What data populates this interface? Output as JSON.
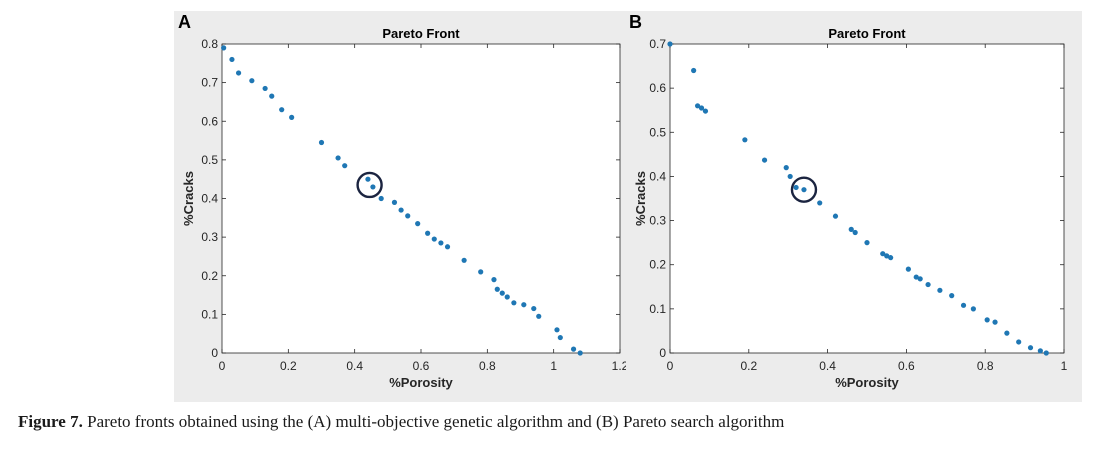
{
  "caption": {
    "label": "Figure 7.",
    "text": " Pareto fronts obtained using the (A) multi-objective genetic algorithm and (B) Pareto search algorithm"
  },
  "colors": {
    "points": "#1f77b4",
    "highlight": "#1b2440",
    "panel_background": "#ececec"
  },
  "chart_data": [
    {
      "type": "scatter",
      "panel_label": "A",
      "title": "Pareto Front",
      "xlabel": "%Porosity",
      "ylabel": "%Cracks",
      "xlim": [
        0,
        1.2
      ],
      "ylim": [
        0,
        0.8
      ],
      "xticks": [
        0,
        0.2,
        0.4,
        0.6,
        0.8,
        1,
        1.2
      ],
      "xtick_labels": [
        "0",
        "0.2",
        "0.4",
        "0.6",
        "0.8",
        "1",
        "1.2"
      ],
      "yticks": [
        0,
        0.1,
        0.2,
        0.3,
        0.4,
        0.5,
        0.6,
        0.7,
        0.8
      ],
      "ytick_labels": [
        "0",
        "0.1",
        "0.2",
        "0.3",
        "0.4",
        "0.5",
        "0.6",
        "0.7",
        "0.8"
      ],
      "grid": false,
      "highlighted_point": [
        0.445,
        0.435
      ],
      "x": [
        0.005,
        0.03,
        0.05,
        0.09,
        0.13,
        0.15,
        0.18,
        0.21,
        0.3,
        0.35,
        0.37,
        0.44,
        0.455,
        0.48,
        0.52,
        0.54,
        0.56,
        0.59,
        0.62,
        0.64,
        0.66,
        0.68,
        0.73,
        0.78,
        0.82,
        0.83,
        0.845,
        0.86,
        0.88,
        0.91,
        0.94,
        0.955,
        1.01,
        1.02,
        1.06,
        1.08
      ],
      "y": [
        0.79,
        0.76,
        0.725,
        0.705,
        0.685,
        0.665,
        0.63,
        0.61,
        0.545,
        0.505,
        0.485,
        0.45,
        0.43,
        0.4,
        0.39,
        0.37,
        0.355,
        0.335,
        0.31,
        0.295,
        0.285,
        0.275,
        0.24,
        0.21,
        0.19,
        0.165,
        0.155,
        0.145,
        0.13,
        0.125,
        0.115,
        0.095,
        0.06,
        0.04,
        0.01,
        0.0
      ]
    },
    {
      "type": "scatter",
      "panel_label": "B",
      "title": "Pareto Front",
      "xlabel": "%Porosity",
      "ylabel": "%Cracks",
      "xlim": [
        0,
        1
      ],
      "ylim": [
        0,
        0.7
      ],
      "xticks": [
        0,
        0.2,
        0.4,
        0.6,
        0.8,
        1
      ],
      "xtick_labels": [
        "0",
        "0.2",
        "0.4",
        "0.6",
        "0.8",
        "1"
      ],
      "yticks": [
        0,
        0.1,
        0.2,
        0.3,
        0.4,
        0.5,
        0.6,
        0.7
      ],
      "ytick_labels": [
        "0",
        "0.1",
        "0.2",
        "0.3",
        "0.4",
        "0.5",
        "0.6",
        "0.7"
      ],
      "grid": false,
      "highlighted_point": [
        0.34,
        0.37
      ],
      "x": [
        0.0,
        0.06,
        0.07,
        0.08,
        0.09,
        0.19,
        0.24,
        0.295,
        0.305,
        0.32,
        0.34,
        0.38,
        0.42,
        0.46,
        0.47,
        0.5,
        0.54,
        0.55,
        0.56,
        0.605,
        0.625,
        0.635,
        0.655,
        0.685,
        0.715,
        0.745,
        0.77,
        0.805,
        0.825,
        0.855,
        0.885,
        0.915,
        0.94,
        0.955
      ],
      "y": [
        0.7,
        0.64,
        0.56,
        0.555,
        0.548,
        0.483,
        0.437,
        0.42,
        0.4,
        0.375,
        0.37,
        0.34,
        0.31,
        0.28,
        0.273,
        0.25,
        0.225,
        0.22,
        0.216,
        0.19,
        0.172,
        0.168,
        0.155,
        0.142,
        0.13,
        0.108,
        0.1,
        0.075,
        0.07,
        0.045,
        0.025,
        0.012,
        0.005,
        0.0
      ]
    }
  ]
}
